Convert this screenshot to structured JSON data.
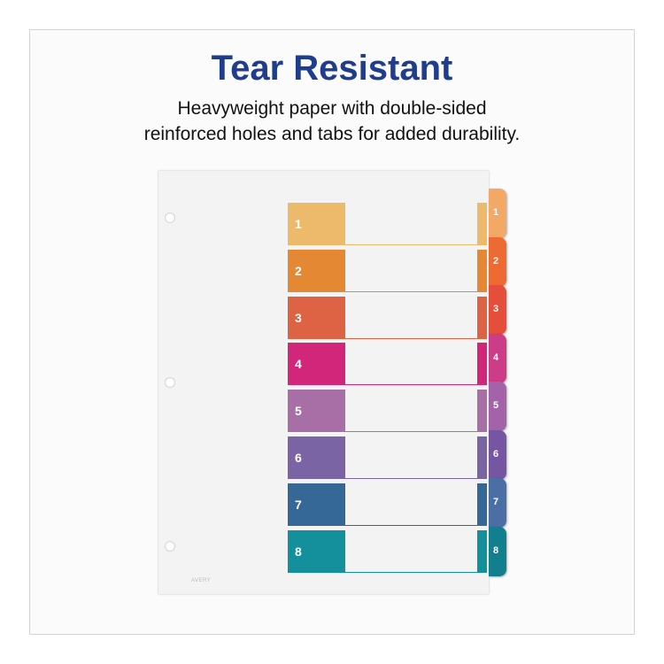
{
  "heading": {
    "title": "Tear Resistant",
    "subtitle_line1": "Heavyweight paper with double-sided",
    "subtitle_line2": "reinforced holes and tabs for added durability."
  },
  "brand_logo": "AVERY",
  "dividers": [
    {
      "label": "1",
      "color": "#EDB96A",
      "tab_color": "#F3A865"
    },
    {
      "label": "2",
      "color": "#E48834",
      "tab_color": "#EE6A33"
    },
    {
      "label": "3",
      "color": "#DE6244",
      "tab_color": "#E44E3A"
    },
    {
      "label": "4",
      "color": "#D2267A",
      "tab_color": "#CC3C87"
    },
    {
      "label": "5",
      "color": "#A86FA6",
      "tab_color": "#A463A8"
    },
    {
      "label": "6",
      "color": "#7A64A3",
      "tab_color": "#7656A3"
    },
    {
      "label": "7",
      "color": "#356797",
      "tab_color": "#4B6EA4"
    },
    {
      "label": "8",
      "color": "#14909C",
      "tab_color": "#127F8E"
    }
  ]
}
